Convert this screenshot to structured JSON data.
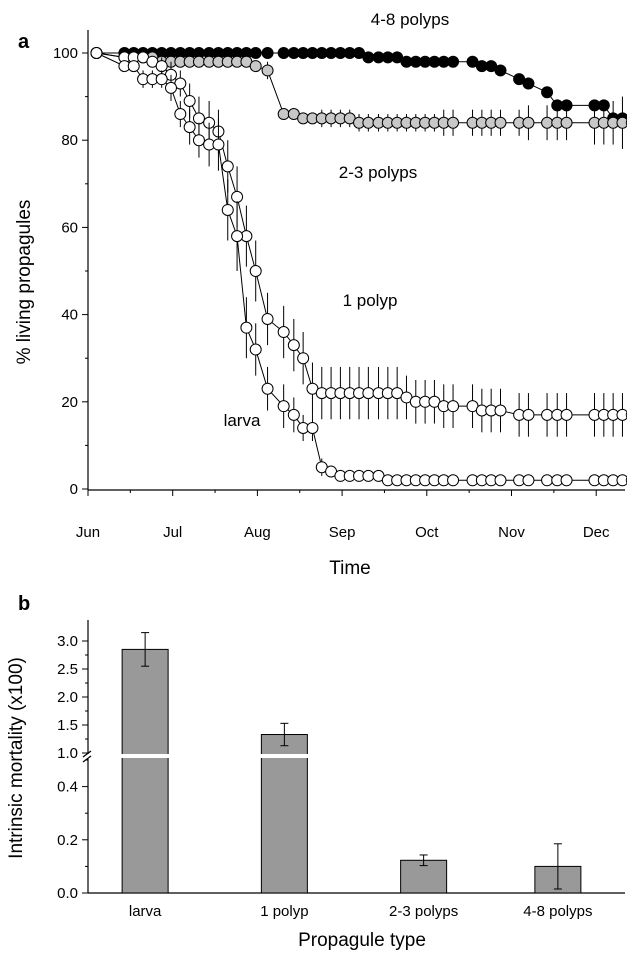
{
  "panel_a_label": "a",
  "panel_b_label": "b",
  "colors": {
    "larva": "#ffffff",
    "polyp1": "#ffffff",
    "polyp23": "#c8c8c8",
    "polyp48": "#000000",
    "bar": "#999999",
    "axis": "#000000"
  },
  "chart_data": [
    {
      "type": "line",
      "panel": "a",
      "xlabel": "Time",
      "ylabel": "% living propagules",
      "ylim": [
        0,
        100
      ],
      "yticks": [
        0,
        20,
        40,
        60,
        80,
        100
      ],
      "xlim": [
        0,
        6.45
      ],
      "xticks": [
        {
          "x": 0,
          "label": "Jun"
        },
        {
          "x": 1,
          "label": "Jul"
        },
        {
          "x": 2,
          "label": "Aug"
        },
        {
          "x": 3,
          "label": "Sep"
        },
        {
          "x": 4,
          "label": "Oct"
        },
        {
          "x": 5,
          "label": "Nov"
        },
        {
          "x": 6,
          "label": "Dec"
        }
      ],
      "x_unit": "months since Jun (Jun=0 ... Dec=6)",
      "grid": false,
      "series": [
        {
          "name": "4-8 polyps",
          "key": "polyp48",
          "x": [
            0.1,
            0.43,
            0.54,
            0.65,
            0.76,
            0.87,
            0.98,
            1.09,
            1.2,
            1.31,
            1.43,
            1.54,
            1.65,
            1.76,
            1.87,
            1.98,
            2.12,
            2.31,
            2.43,
            2.54,
            2.65,
            2.76,
            2.87,
            2.98,
            3.09,
            3.2,
            3.31,
            3.43,
            3.54,
            3.65,
            3.76,
            3.87,
            3.98,
            4.09,
            4.2,
            4.31,
            4.54,
            4.65,
            4.76,
            4.87,
            5.09,
            5.2,
            5.42,
            5.54,
            5.65,
            5.98,
            6.09,
            6.2,
            6.31,
            6.42
          ],
          "y": [
            100,
            100,
            100,
            100,
            100,
            100,
            100,
            100,
            100,
            100,
            100,
            100,
            100,
            100,
            100,
            100,
            100,
            100,
            100,
            100,
            100,
            100,
            100,
            100,
            100,
            100,
            99,
            99,
            99,
            99,
            98,
            98,
            98,
            98,
            98,
            98,
            98,
            97,
            97,
            96,
            94,
            93,
            91,
            88,
            88,
            88,
            88,
            85,
            85,
            84
          ],
          "err": [
            0,
            0,
            0,
            0,
            0,
            0,
            0,
            0,
            0,
            0,
            0,
            0,
            0,
            0,
            0,
            0,
            0,
            0,
            0,
            0,
            0,
            0,
            0,
            0,
            0,
            0,
            0,
            0,
            0,
            0,
            0,
            0,
            0,
            0,
            0,
            0,
            0,
            0,
            0,
            0,
            0,
            0,
            0,
            0,
            0,
            0,
            0,
            0,
            0,
            0
          ]
        },
        {
          "name": "2-3 polyps",
          "key": "polyp23",
          "x": [
            0.1,
            0.43,
            0.54,
            0.65,
            0.76,
            0.87,
            0.98,
            1.09,
            1.2,
            1.31,
            1.43,
            1.54,
            1.65,
            1.76,
            1.87,
            1.98,
            2.12,
            2.31,
            2.43,
            2.54,
            2.65,
            2.76,
            2.87,
            2.98,
            3.09,
            3.2,
            3.31,
            3.43,
            3.54,
            3.65,
            3.76,
            3.87,
            3.98,
            4.09,
            4.2,
            4.31,
            4.54,
            4.65,
            4.76,
            4.87,
            5.09,
            5.2,
            5.42,
            5.54,
            5.65,
            5.98,
            6.09,
            6.2,
            6.31,
            6.42
          ],
          "y": [
            100,
            99,
            99,
            99,
            99,
            98,
            98,
            98,
            98,
            98,
            98,
            98,
            98,
            98,
            98,
            97,
            96,
            86,
            86,
            85,
            85,
            85,
            85,
            85,
            85,
            84,
            84,
            84,
            84,
            84,
            84,
            84,
            84,
            84,
            84,
            84,
            84,
            84,
            84,
            84,
            84,
            84,
            84,
            84,
            84,
            84,
            84,
            84,
            84,
            84
          ],
          "err": [
            0,
            0,
            0,
            0,
            0,
            0,
            0,
            0,
            0,
            0,
            0,
            0,
            0,
            0,
            0,
            0,
            2,
            1,
            1,
            1,
            1,
            2,
            2,
            2,
            2,
            2,
            2,
            2,
            2,
            2,
            2,
            2,
            2,
            2,
            3,
            3,
            3,
            3,
            3,
            3,
            3,
            4,
            4,
            4,
            4,
            5,
            5,
            5,
            6,
            6
          ]
        },
        {
          "name": "1 polyp",
          "key": "polyp1",
          "x": [
            0.1,
            0.43,
            0.54,
            0.65,
            0.76,
            0.87,
            0.98,
            1.09,
            1.2,
            1.31,
            1.43,
            1.54,
            1.65,
            1.76,
            1.87,
            1.98,
            2.12,
            2.31,
            2.43,
            2.54,
            2.65,
            2.76,
            2.87,
            2.98,
            3.09,
            3.2,
            3.31,
            3.43,
            3.54,
            3.65,
            3.76,
            3.87,
            3.98,
            4.09,
            4.2,
            4.31,
            4.54,
            4.65,
            4.76,
            4.87,
            5.09,
            5.2,
            5.42,
            5.54,
            5.65,
            5.98,
            6.09,
            6.2,
            6.31,
            6.42
          ],
          "y": [
            100,
            99,
            99,
            99,
            98,
            97,
            95,
            93,
            89,
            85,
            84,
            82,
            74,
            67,
            58,
            50,
            39,
            36,
            33,
            30,
            23,
            22,
            22,
            22,
            22,
            22,
            22,
            22,
            22,
            22,
            21,
            20,
            20,
            20,
            19,
            19,
            19,
            18,
            18,
            18,
            17,
            17,
            17,
            17,
            17,
            17,
            17,
            17,
            17,
            17
          ],
          "err": [
            0,
            1,
            1,
            1,
            1,
            2,
            3,
            3,
            4,
            5,
            5,
            5,
            6,
            7,
            7,
            7,
            6,
            6,
            6,
            6,
            6,
            6,
            6,
            6,
            6,
            6,
            6,
            6,
            6,
            6,
            5,
            5,
            5,
            5,
            5,
            5,
            5,
            5,
            5,
            5,
            5,
            5,
            5,
            5,
            5,
            5,
            5,
            5,
            5,
            5
          ]
        },
        {
          "name": "larva",
          "key": "larva",
          "x": [
            0.1,
            0.43,
            0.54,
            0.65,
            0.76,
            0.87,
            0.98,
            1.09,
            1.2,
            1.31,
            1.43,
            1.54,
            1.65,
            1.76,
            1.87,
            1.98,
            2.12,
            2.31,
            2.43,
            2.54,
            2.65,
            2.76,
            2.87,
            2.98,
            3.09,
            3.2,
            3.31,
            3.43,
            3.54,
            3.65,
            3.76,
            3.87,
            3.98,
            4.09,
            4.2,
            4.31,
            4.54,
            4.65,
            4.76,
            4.87,
            5.09,
            5.2,
            5.42,
            5.54,
            5.65,
            5.98,
            6.09,
            6.2,
            6.31,
            6.42
          ],
          "y": [
            100,
            97,
            97,
            94,
            94,
            94,
            92,
            86,
            83,
            80,
            79,
            79,
            64,
            58,
            37,
            32,
            23,
            19,
            17,
            14,
            14,
            5,
            4,
            3,
            3,
            3,
            3,
            3,
            2,
            2,
            2,
            2,
            2,
            2,
            2,
            2,
            2,
            2,
            2,
            2,
            2,
            2,
            2,
            2,
            2,
            2,
            2,
            2,
            2,
            2
          ],
          "err": [
            0,
            1,
            1,
            2,
            2,
            2,
            3,
            3,
            4,
            4,
            5,
            6,
            7,
            8,
            7,
            6,
            5,
            5,
            4,
            3,
            3,
            2,
            1,
            1,
            1,
            1,
            1,
            1,
            1,
            1,
            1,
            1,
            1,
            1,
            1,
            1,
            1,
            1,
            1,
            1,
            1,
            1,
            1,
            1,
            1,
            1,
            1,
            1,
            1,
            1
          ]
        }
      ],
      "annotations": [
        {
          "text": "4-8 polyps"
        },
        {
          "text": "2-3 polyps"
        },
        {
          "text": "1 polyp"
        },
        {
          "text": "larva"
        }
      ]
    },
    {
      "type": "bar",
      "panel": "b",
      "xlabel": "Propagule type",
      "ylabel": "Intrinsic mortality (x100)",
      "categories": [
        "larva",
        "1 polyp",
        "2-3 polyps",
        "4-8 polyps"
      ],
      "values": [
        2.85,
        1.33,
        0.123,
        0.1
      ],
      "err": [
        0.3,
        0.2,
        0.02,
        0.085
      ],
      "scale": "broken",
      "lower_range": [
        0,
        0.5
      ],
      "upper_range": [
        1.0,
        3.0
      ],
      "yticks_lower": [
        "0.0",
        "0.2",
        "0.4"
      ],
      "yticks_upper": [
        "1.0",
        "1.5",
        "2.0",
        "2.5",
        "3.0"
      ],
      "grid": false
    }
  ]
}
